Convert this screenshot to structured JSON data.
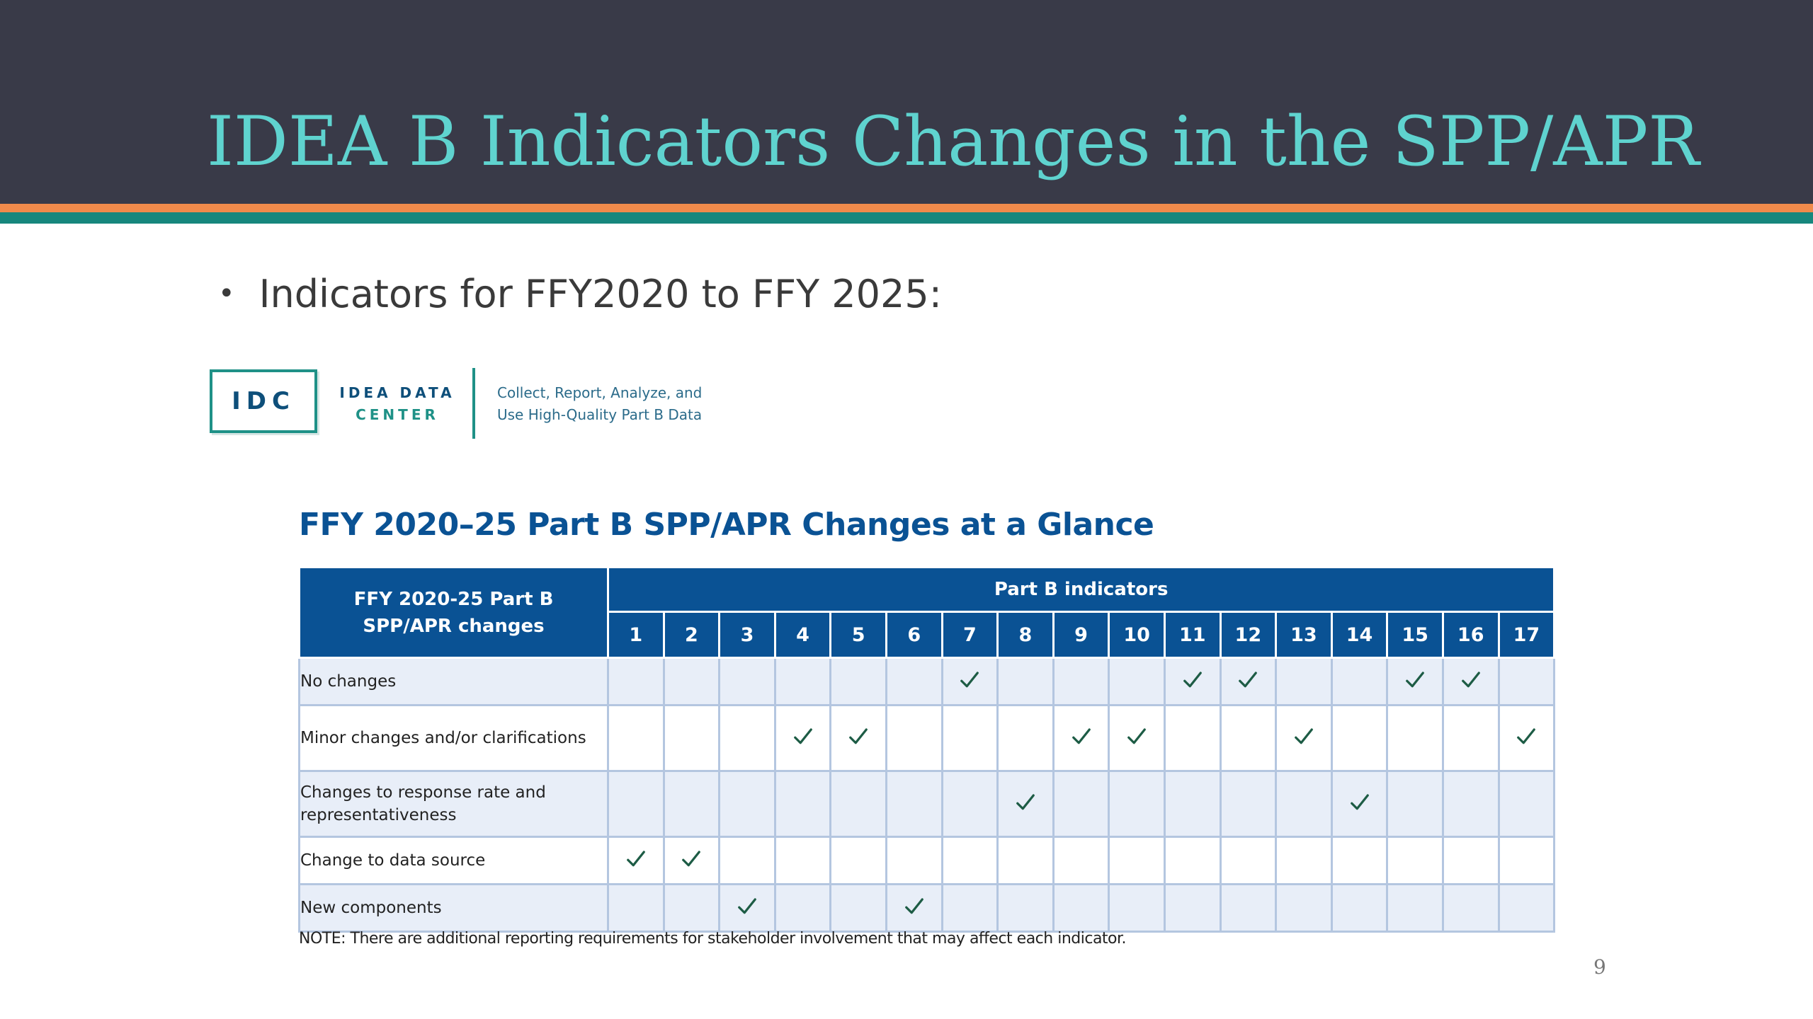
{
  "slide": {
    "title": "IDEA B Indicators Changes in the SPP/APR",
    "bullet": "Indicators for FFY2020 to FFY 2025:",
    "page_number": "9"
  },
  "logo": {
    "abbr": "IDC",
    "name_line1": "IDEA DATA",
    "name_line2": "CENTER",
    "tagline_line1": "Collect, Report, Analyze, and",
    "tagline_line2": "Use High-Quality Part B Data"
  },
  "figure": {
    "title": "FFY 2020–25 Part B SPP/APR Changes at a Glance",
    "note": "NOTE: There are additional reporting requirements for stakeholder involvement that may affect each indicator."
  },
  "colors": {
    "title_bar": "#393a48",
    "title_text": "#5fd3cf",
    "stripe_orange": "#f08a4b",
    "stripe_teal": "#17877d",
    "table_header": "#0a5294",
    "row_shade": "#e8eef8"
  },
  "table": {
    "corner_header_line1": "FFY 2020-25 Part B",
    "corner_header_line2": "SPP/APR changes",
    "group_header": "Part B indicators",
    "columns": [
      "1",
      "2",
      "3",
      "4",
      "5",
      "6",
      "7",
      "8",
      "9",
      "10",
      "11",
      "12",
      "13",
      "14",
      "15",
      "16",
      "17"
    ],
    "check_icon": "check-icon",
    "rows": [
      {
        "label": "No changes",
        "checks": [
          7,
          11,
          12,
          15,
          16
        ]
      },
      {
        "label": "Minor changes and/or clarifications",
        "checks": [
          4,
          5,
          9,
          10,
          13,
          17
        ]
      },
      {
        "label": "Changes to response rate and representativeness",
        "checks": [
          8,
          14
        ]
      },
      {
        "label": "Change to data source",
        "checks": [
          1,
          2
        ]
      },
      {
        "label": "New components",
        "checks": [
          3,
          6
        ]
      }
    ]
  }
}
